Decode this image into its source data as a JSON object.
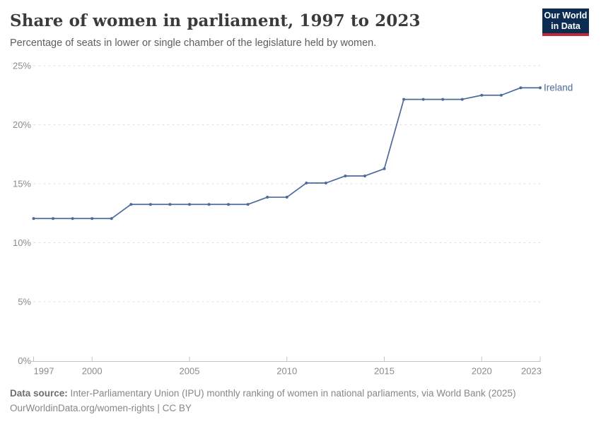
{
  "header": {
    "title": "Share of women in parliament, 1997 to 2023",
    "subtitle": "Percentage of seats in lower or single chamber of the legislature held by women."
  },
  "logo": {
    "line1": "Our World",
    "line2": "in Data"
  },
  "footer": {
    "source_label": "Data source:",
    "source_text": " Inter-Parliamentary Union (IPU) monthly ranking of women in national parliaments, via World Bank (2025)",
    "link_line": "OurWorldinData.org/women-rights | CC BY"
  },
  "colors": {
    "line": "#4c6a9c",
    "grid": "#e2e2e2",
    "axis": "#c4c4c4",
    "tick_label": "#8b8b8b",
    "logo_bg": "#0d2c51",
    "logo_red": "#c0283c"
  },
  "chart_data": {
    "type": "line",
    "title": "Share of women in parliament, 1997 to 2023",
    "subtitle": "Percentage of seats in lower or single chamber of the legislature held by women.",
    "x": [
      1997,
      1998,
      1999,
      2000,
      2001,
      2002,
      2003,
      2004,
      2005,
      2006,
      2007,
      2008,
      2009,
      2010,
      2011,
      2012,
      2013,
      2014,
      2015,
      2016,
      2017,
      2018,
      2019,
      2020,
      2021,
      2022,
      2023
    ],
    "series": [
      {
        "name": "Ireland",
        "color": "#4c6a9c",
        "values": [
          12.05,
          12.05,
          12.05,
          12.05,
          12.05,
          13.25,
          13.25,
          13.25,
          13.25,
          13.25,
          13.25,
          13.25,
          13.86,
          13.86,
          15.06,
          15.06,
          15.66,
          15.66,
          16.27,
          22.15,
          22.15,
          22.15,
          22.15,
          22.5,
          22.5,
          23.13,
          23.13
        ]
      }
    ],
    "xlabel": "",
    "ylabel": "",
    "xlim": [
      1997,
      2023
    ],
    "ylim": [
      0,
      25
    ],
    "x_ticks": [
      1997,
      2000,
      2005,
      2010,
      2015,
      2020,
      2023
    ],
    "y_ticks": [
      0,
      5,
      10,
      15,
      20,
      25
    ],
    "y_tick_suffix": "%",
    "grid": "horizontal dashed",
    "legend_position": "end-of-line label"
  }
}
